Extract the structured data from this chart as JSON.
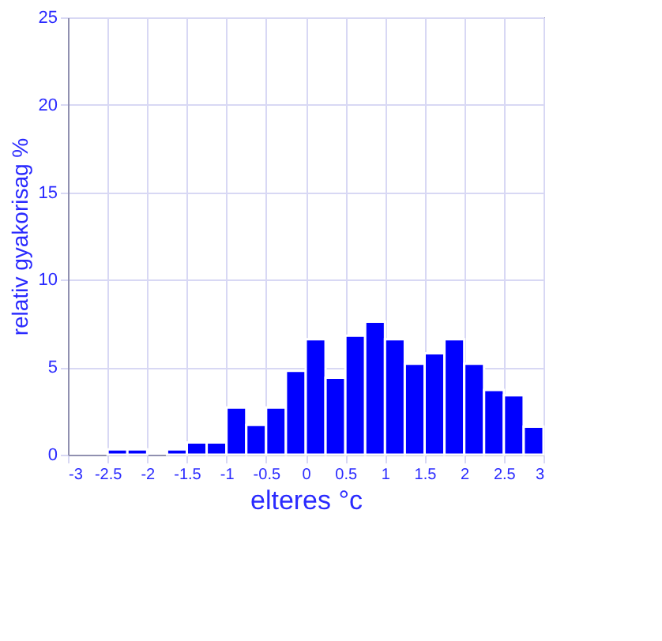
{
  "chart_data": {
    "type": "histogram",
    "xlabel": "elteres °c",
    "ylabel": "relativ gyakorisag %",
    "bins": [
      -3,
      -2.75,
      -2.5,
      -2.25,
      -2,
      -1.75,
      -1.5,
      -1.25,
      -1,
      -0.75,
      -0.5,
      -0.25,
      0,
      0.25,
      0.5,
      0.75,
      1,
      1.25,
      1.5,
      1.75,
      2,
      2.25,
      2.5,
      2.75,
      3
    ],
    "values": [
      0,
      0,
      0.3,
      0.3,
      0,
      0.3,
      0.7,
      0.7,
      2.7,
      1.7,
      2.7,
      4.8,
      6.6,
      4.4,
      6.8,
      7.6,
      6.6,
      5.2,
      5.8,
      6.6,
      5.2,
      3.7,
      3.4,
      1.6
    ],
    "color": "#0000ff",
    "xlim": [
      -3,
      3
    ],
    "xticks": [
      -3,
      -2.5,
      -2,
      -1.5,
      -1,
      -0.5,
      0,
      0.5,
      1,
      1.5,
      2,
      2.5,
      3
    ],
    "ylim": [
      0,
      25
    ],
    "yticks": [
      0,
      5,
      10,
      15,
      20,
      25
    ],
    "grid": true
  }
}
